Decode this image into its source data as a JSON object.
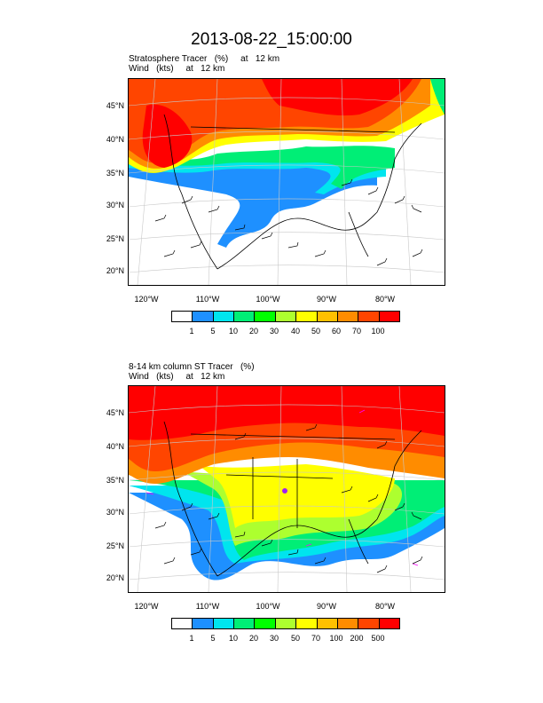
{
  "title": "2013-08-22_15:00:00",
  "panels": [
    {
      "id": "strat",
      "line1": "Stratosphere Tracer   (%)     at   12 km",
      "line2": "Wind   (kts)     at   12 km",
      "lat_labels": [
        "45°N",
        "40°N",
        "35°N",
        "30°N",
        "25°N",
        "20°N"
      ],
      "lon_labels": [
        "120°W",
        "110°W",
        "100°W",
        "90°W",
        "80°W"
      ],
      "colorbar_labels": [
        "1",
        "5",
        "10",
        "20",
        "30",
        "40",
        "50",
        "60",
        "70",
        "100"
      ]
    },
    {
      "id": "column",
      "line1": "8-14 km column ST Tracer   (%)",
      "line2": "Wind   (kts)     at   12 km",
      "lat_labels": [
        "45°N",
        "40°N",
        "35°N",
        "30°N",
        "25°N",
        "20°N"
      ],
      "lon_labels": [
        "120°W",
        "110°W",
        "100°W",
        "90°W",
        "80°W"
      ],
      "colorbar_labels": [
        "1",
        "5",
        "10",
        "20",
        "30",
        "50",
        "70",
        "100",
        "200",
        "500"
      ]
    }
  ],
  "colorbar_colors": [
    "#ffffff",
    "#1e90ff",
    "#00e5ee",
    "#00ee76",
    "#00ff00",
    "#adff2f",
    "#ffff00",
    "#ffc000",
    "#ff8c00",
    "#ff4500",
    "#ff0000"
  ]
}
